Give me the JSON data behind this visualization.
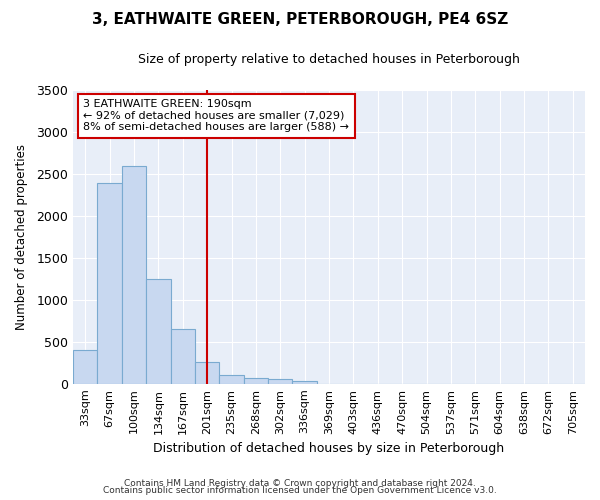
{
  "title": "3, EATHWAITE GREEN, PETERBOROUGH, PE4 6SZ",
  "subtitle": "Size of property relative to detached houses in Peterborough",
  "xlabel": "Distribution of detached houses by size in Peterborough",
  "ylabel": "Number of detached properties",
  "footnote1": "Contains HM Land Registry data © Crown copyright and database right 2024.",
  "footnote2": "Contains public sector information licensed under the Open Government Licence v3.0.",
  "categories": [
    "33sqm",
    "67sqm",
    "100sqm",
    "134sqm",
    "167sqm",
    "201sqm",
    "235sqm",
    "268sqm",
    "302sqm",
    "336sqm",
    "369sqm",
    "403sqm",
    "436sqm",
    "470sqm",
    "504sqm",
    "537sqm",
    "571sqm",
    "604sqm",
    "638sqm",
    "672sqm",
    "705sqm"
  ],
  "values": [
    400,
    2400,
    2600,
    1250,
    650,
    260,
    100,
    70,
    55,
    30,
    0,
    0,
    0,
    0,
    0,
    0,
    0,
    0,
    0,
    0,
    0
  ],
  "bar_color": "#c8d8f0",
  "bar_edge_color": "#7aaad0",
  "vline_x_idx": 5,
  "vline_color": "#cc0000",
  "annotation_text_line1": "3 EATHWAITE GREEN: 190sqm",
  "annotation_text_line2": "← 92% of detached houses are smaller (7,029)",
  "annotation_text_line3": "8% of semi-detached houses are larger (588) →",
  "annotation_box_color": "#cc0000",
  "ylim": [
    0,
    3500
  ],
  "yticks": [
    0,
    500,
    1000,
    1500,
    2000,
    2500,
    3000,
    3500
  ],
  "plot_bg_color": "#e8eef8",
  "fig_bg_color": "#ffffff",
  "grid_color": "#ffffff",
  "title_fontsize": 11,
  "subtitle_fontsize": 9
}
